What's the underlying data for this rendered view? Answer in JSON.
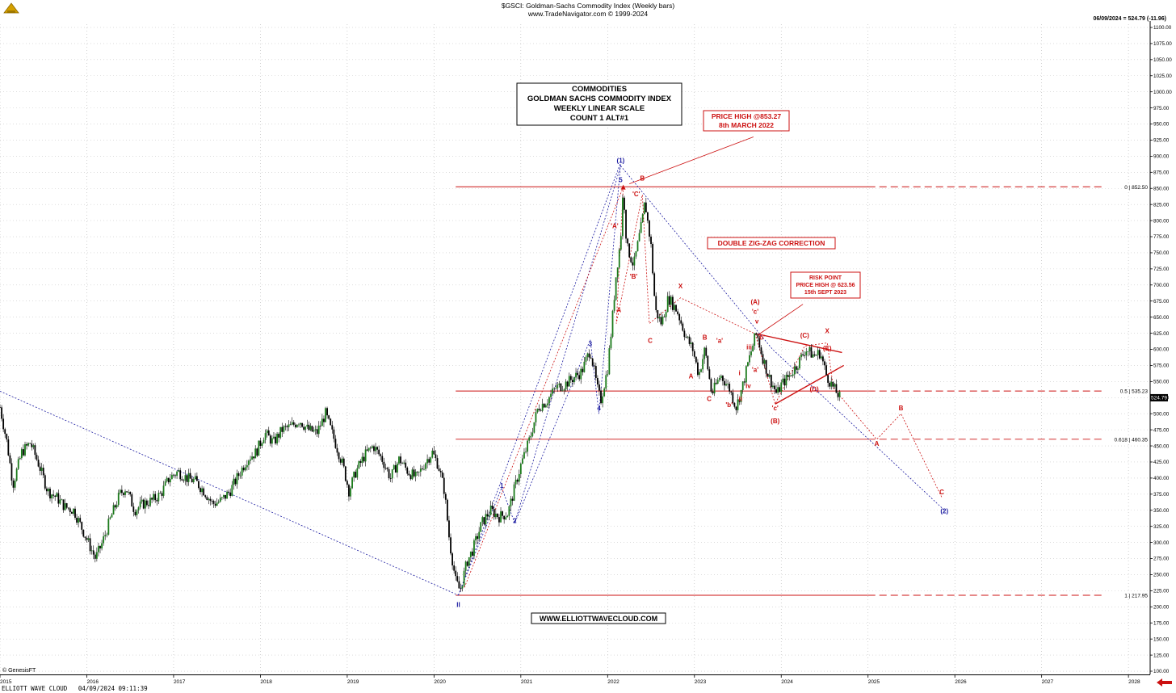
{
  "header": {
    "title": "$GSCI:  Goldman-Sachs Commodity Index  (Weekly bars)",
    "subtitle": "www.TradeNavigator.com © 1999-2024",
    "last_price_note": "06/09/2024 = 524.79 (-11.96)"
  },
  "info_box": {
    "line1": "COMMODITIES",
    "line2": "GOLDMAN SACHS COMMODITY INDEX",
    "line3": "WEEKLY LINEAR SCALE",
    "line4": "COUNT 1  ALT#1"
  },
  "footer": {
    "copyright": "© GenesisFT",
    "bottom_line": "ELLIOTT WAVE CLOUD   04/09/2024 09:11:39"
  },
  "colors": {
    "wave_red": "#cc1111",
    "wave_blue": "#1a1aa0",
    "up_bar": "#1a7a1a",
    "down_bar": "#000000"
  },
  "chart_data": {
    "type": "line",
    "xlabel": "",
    "ylabel": "",
    "x_ticks": [
      "2015",
      "2016",
      "2017",
      "2018",
      "2019",
      "2020",
      "2021",
      "2022",
      "2023",
      "2024",
      "2025",
      "2026",
      "2027",
      "2028"
    ],
    "x_range": [
      2015.0,
      2028.25
    ],
    "y_range": [
      95,
      1105
    ],
    "y_ticks": [
      100,
      125,
      150,
      175,
      200,
      225,
      250,
      275,
      300,
      325,
      350,
      375,
      400,
      425,
      450,
      475,
      500,
      525,
      550,
      575,
      600,
      625,
      650,
      675,
      700,
      725,
      750,
      775,
      800,
      825,
      850,
      875,
      900,
      925,
      950,
      975,
      1000,
      1025,
      1050,
      1075,
      1100
    ],
    "y_tick_labels": [
      "100.00",
      "125.00",
      "150.00",
      "175.00",
      "200.00",
      "225.00",
      "250.00",
      "275.00",
      "300.00",
      "325.00",
      "350.00",
      "375.00",
      "400.00",
      "425.00",
      "450.00",
      "475.00",
      "500.00",
      "525.00",
      "550.00",
      "575.00",
      "600.00",
      "625.00",
      "650.00",
      "675.00",
      "700.00",
      "725.00",
      "750.00",
      "775.00",
      "800.00",
      "825.00",
      "850.00",
      "875.00",
      "900.00",
      "925.00",
      "950.00",
      "975.00",
      "1000.00",
      "1025.00",
      "1050.00",
      "1075.00",
      "1100.00"
    ],
    "last_price_label": "524.79",
    "last_price_value": 524.79,
    "price_path": [
      [
        2015.0,
        510
      ],
      [
        2015.08,
        455
      ],
      [
        2015.15,
        390
      ],
      [
        2015.25,
        440
      ],
      [
        2015.35,
        455
      ],
      [
        2015.45,
        420
      ],
      [
        2015.55,
        380
      ],
      [
        2015.65,
        370
      ],
      [
        2015.75,
        355
      ],
      [
        2015.85,
        350
      ],
      [
        2015.95,
        320
      ],
      [
        2016.05,
        290
      ],
      [
        2016.1,
        275
      ],
      [
        2016.18,
        300
      ],
      [
        2016.28,
        340
      ],
      [
        2016.38,
        375
      ],
      [
        2016.45,
        385
      ],
      [
        2016.55,
        350
      ],
      [
        2016.65,
        360
      ],
      [
        2016.75,
        365
      ],
      [
        2016.85,
        375
      ],
      [
        2016.95,
        400
      ],
      [
        2017.05,
        410
      ],
      [
        2017.15,
        400
      ],
      [
        2017.25,
        395
      ],
      [
        2017.35,
        380
      ],
      [
        2017.45,
        360
      ],
      [
        2017.55,
        365
      ],
      [
        2017.65,
        380
      ],
      [
        2017.75,
        405
      ],
      [
        2017.85,
        430
      ],
      [
        2017.95,
        440
      ],
      [
        2018.05,
        470
      ],
      [
        2018.15,
        455
      ],
      [
        2018.25,
        475
      ],
      [
        2018.35,
        480
      ],
      [
        2018.45,
        490
      ],
      [
        2018.55,
        475
      ],
      [
        2018.65,
        470
      ],
      [
        2018.75,
        500
      ],
      [
        2018.85,
        460
      ],
      [
        2018.95,
        420
      ],
      [
        2019.02,
        380
      ],
      [
        2019.1,
        410
      ],
      [
        2019.2,
        435
      ],
      [
        2019.3,
        450
      ],
      [
        2019.4,
        430
      ],
      [
        2019.5,
        400
      ],
      [
        2019.6,
        430
      ],
      [
        2019.7,
        410
      ],
      [
        2019.8,
        400
      ],
      [
        2019.9,
        425
      ],
      [
        2019.98,
        440
      ],
      [
        2020.05,
        420
      ],
      [
        2020.12,
        380
      ],
      [
        2020.18,
        300
      ],
      [
        2020.25,
        240
      ],
      [
        2020.3,
        225
      ],
      [
        2020.38,
        270
      ],
      [
        2020.45,
        290
      ],
      [
        2020.55,
        330
      ],
      [
        2020.65,
        350
      ],
      [
        2020.75,
        340
      ],
      [
        2020.85,
        345
      ],
      [
        2020.92,
        380
      ],
      [
        2021.0,
        420
      ],
      [
        2021.1,
        460
      ],
      [
        2021.2,
        510
      ],
      [
        2021.3,
        520
      ],
      [
        2021.4,
        540
      ],
      [
        2021.5,
        545
      ],
      [
        2021.6,
        555
      ],
      [
        2021.7,
        565
      ],
      [
        2021.8,
        600
      ],
      [
        2021.88,
        540
      ],
      [
        2021.92,
        520
      ],
      [
        2022.0,
        570
      ],
      [
        2022.05,
        640
      ],
      [
        2022.1,
        720
      ],
      [
        2022.15,
        770
      ],
      [
        2022.18,
        852
      ],
      [
        2022.22,
        760
      ],
      [
        2022.3,
        730
      ],
      [
        2022.4,
        800
      ],
      [
        2022.43,
        830
      ],
      [
        2022.5,
        760
      ],
      [
        2022.55,
        660
      ],
      [
        2022.62,
        640
      ],
      [
        2022.7,
        680
      ],
      [
        2022.8,
        660
      ],
      [
        2022.9,
        620
      ],
      [
        2022.98,
        600
      ],
      [
        2023.05,
        560
      ],
      [
        2023.12,
        600
      ],
      [
        2023.2,
        530
      ],
      [
        2023.3,
        560
      ],
      [
        2023.4,
        540
      ],
      [
        2023.48,
        510
      ],
      [
        2023.55,
        540
      ],
      [
        2023.62,
        580
      ],
      [
        2023.7,
        620
      ],
      [
        2023.72,
        624
      ],
      [
        2023.78,
        590
      ],
      [
        2023.85,
        560
      ],
      [
        2023.95,
        530
      ],
      [
        2024.0,
        545
      ],
      [
        2024.1,
        560
      ],
      [
        2024.2,
        580
      ],
      [
        2024.28,
        600
      ],
      [
        2024.38,
        590
      ],
      [
        2024.45,
        595
      ],
      [
        2024.52,
        560
      ],
      [
        2024.6,
        540
      ],
      [
        2024.68,
        525
      ]
    ]
  },
  "fib_lines": [
    {
      "label": "0 | 852.50",
      "value": 852.5
    },
    {
      "label": "0.5 | 535.23",
      "value": 535.23
    },
    {
      "label": "0.618 | 460.35",
      "value": 460.35
    },
    {
      "label": "1 | 217.95",
      "value": 217.95
    }
  ],
  "annotations": {
    "price_high": {
      "line1": "PRICE HIGH @853.27",
      "line2": "8th MARCH 2022"
    },
    "double_zigzag": "DOUBLE ZIG-ZAG CORRECTION",
    "risk_point": {
      "line1": "RISK POINT",
      "line2": "PRICE HIGH @ 623.56",
      "line3": "15th SEPT 2023"
    },
    "website": "WWW.ELLIOTTWAVECLOUD.COM"
  },
  "wave_labels": {
    "blue": [
      {
        "text": "(1)",
        "x": 2022.15,
        "y": 890
      },
      {
        "text": "5",
        "x": 2022.15,
        "y": 860
      },
      {
        "text": "3",
        "x": 2021.8,
        "y": 605
      },
      {
        "text": "4",
        "x": 2021.9,
        "y": 505
      },
      {
        "text": "1",
        "x": 2020.78,
        "y": 385
      },
      {
        "text": "2",
        "x": 2020.93,
        "y": 330
      },
      {
        "text": "II",
        "x": 2020.28,
        "y": 200
      },
      {
        "text": "(2)",
        "x": 2025.88,
        "y": 345
      }
    ],
    "red": [
      {
        "text": "B",
        "x": 2022.4,
        "y": 862
      },
      {
        "text": "'C'",
        "x": 2022.33,
        "y": 838
      },
      {
        "text": "'A'",
        "x": 2022.08,
        "y": 788
      },
      {
        "text": "'B'",
        "x": 2022.3,
        "y": 710
      },
      {
        "text": "A",
        "x": 2022.13,
        "y": 658
      },
      {
        "text": "C",
        "x": 2022.49,
        "y": 610
      },
      {
        "text": "X",
        "x": 2022.84,
        "y": 695
      },
      {
        "text": "B",
        "x": 2023.12,
        "y": 615
      },
      {
        "text": "A",
        "x": 2022.96,
        "y": 555
      },
      {
        "text": "C",
        "x": 2023.17,
        "y": 520
      },
      {
        "text": "'a'",
        "x": 2023.29,
        "y": 610
      },
      {
        "text": "'b'",
        "x": 2023.4,
        "y": 510
      },
      {
        "text": "i",
        "x": 2023.52,
        "y": 560
      },
      {
        "text": "ii",
        "x": 2023.53,
        "y": 520
      },
      {
        "text": "iii",
        "x": 2023.63,
        "y": 600
      },
      {
        "text": "iv",
        "x": 2023.62,
        "y": 540
      },
      {
        "text": "v",
        "x": 2023.72,
        "y": 640
      },
      {
        "text": "'c'",
        "x": 2023.7,
        "y": 655
      },
      {
        "text": "(A)",
        "x": 2023.7,
        "y": 670
      },
      {
        "text": "'b'",
        "x": 2023.77,
        "y": 615
      },
      {
        "text": "'a'",
        "x": 2023.7,
        "y": 565
      },
      {
        "text": "'c'",
        "x": 2023.93,
        "y": 505
      },
      {
        "text": "(B)",
        "x": 2023.93,
        "y": 485
      },
      {
        "text": "(C)",
        "x": 2024.27,
        "y": 618
      },
      {
        "text": "X",
        "x": 2024.53,
        "y": 625
      },
      {
        "text": "(E)",
        "x": 2024.53,
        "y": 598
      },
      {
        "text": "(D)",
        "x": 2024.38,
        "y": 535
      },
      {
        "text": "B",
        "x": 2025.38,
        "y": 505
      },
      {
        "text": "A",
        "x": 2025.1,
        "y": 450
      },
      {
        "text": "C",
        "x": 2025.85,
        "y": 375
      }
    ]
  }
}
